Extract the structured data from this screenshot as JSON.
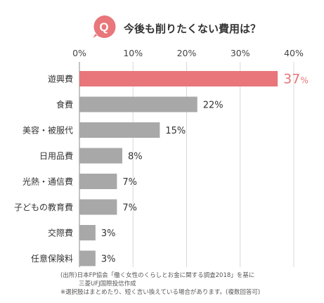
{
  "question": {
    "badge": "Q",
    "title": "今後も削りたくない費用は？"
  },
  "chart_data": {
    "type": "bar",
    "orientation": "horizontal",
    "categories": [
      "遊興費",
      "食費",
      "美容・被服代",
      "日用品費",
      "光熱・通信費",
      "子どもの教育費",
      "交際費",
      "任意保険料"
    ],
    "values": [
      37,
      22,
      15,
      8,
      7,
      7,
      3,
      3
    ],
    "value_suffix": "%",
    "xlim": [
      0,
      40
    ],
    "xticks": [
      "0%",
      "10%",
      "20%",
      "30%",
      "40%"
    ],
    "xtick_values": [
      0,
      10,
      20,
      30,
      40
    ],
    "grid": true,
    "highlight_index": 0,
    "colors": {
      "highlight": "#e8767a",
      "bar": "#a8a8a8",
      "badge": "#e8767a",
      "grid": "#d8d8d8"
    }
  },
  "source": {
    "line1": "(出所)日本FP協会「働く女性のくらしとお金に関する調査2018」を基に",
    "line2": "三菱UFJ国際投信作成",
    "line3": "※選択肢はまとめたり、短く言い換えている場合があります。(複数回答可)"
  }
}
